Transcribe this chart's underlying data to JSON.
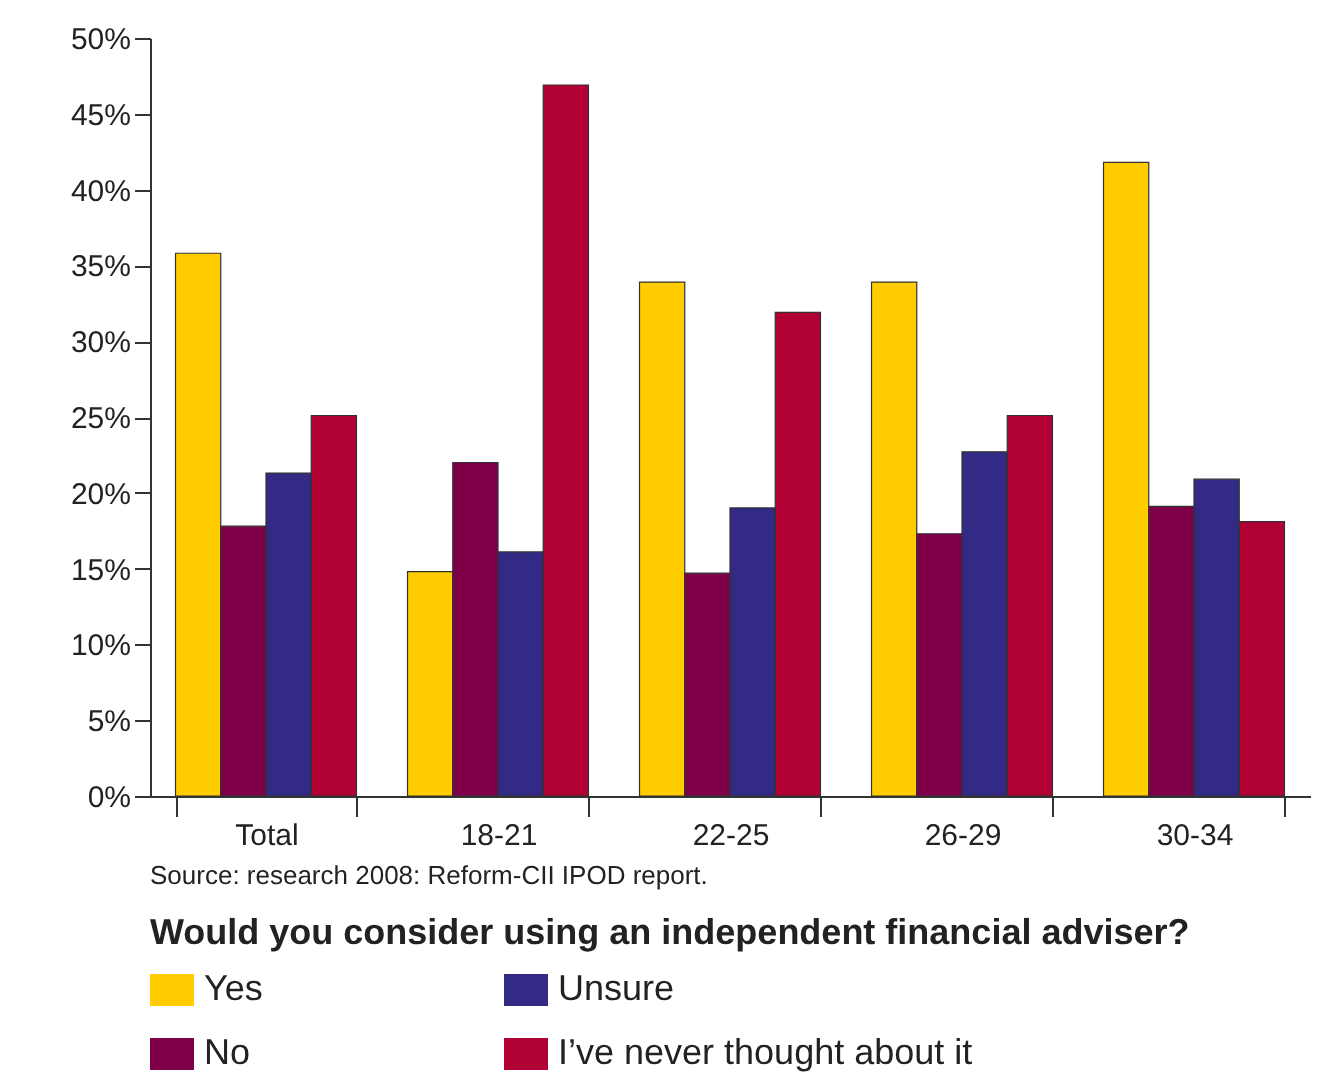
{
  "chart_data": {
    "type": "bar",
    "title": "Would you consider using an independent financial adviser?",
    "categories": [
      "Total",
      "18-21",
      "22-25",
      "26-29",
      "30-34"
    ],
    "series": [
      {
        "name": "Yes",
        "color": "#ffcc00",
        "values": [
          35.8,
          14.8,
          33.9,
          33.9,
          41.8
        ]
      },
      {
        "name": "No",
        "color": "#7f0048",
        "values": [
          17.8,
          22.0,
          14.7,
          17.3,
          19.1
        ]
      },
      {
        "name": "Unsure",
        "color": "#332a86",
        "values": [
          21.3,
          16.1,
          19.0,
          22.7,
          20.9
        ]
      },
      {
        "name": "I’ve never thought about it",
        "color": "#b10034",
        "values": [
          25.1,
          46.9,
          31.9,
          25.1,
          18.1
        ]
      }
    ],
    "ylim": [
      0,
      50
    ],
    "yticks": [
      {
        "value": 0,
        "label": "0%"
      },
      {
        "value": 5,
        "label": "5%"
      },
      {
        "value": 10,
        "label": "10%"
      },
      {
        "value": 15,
        "label": "15%"
      },
      {
        "value": 20,
        "label": "20%"
      },
      {
        "value": 25,
        "label": "25%"
      },
      {
        "value": 30,
        "label": "30%"
      },
      {
        "value": 35,
        "label": "35%"
      },
      {
        "value": 40,
        "label": "40%"
      },
      {
        "value": 45,
        "label": "45%"
      },
      {
        "value": 50,
        "label": "50%"
      }
    ],
    "grid": false,
    "legend": "bottom",
    "annotations": [
      "Source: research 2008: Reform-CII IPOD report."
    ]
  }
}
